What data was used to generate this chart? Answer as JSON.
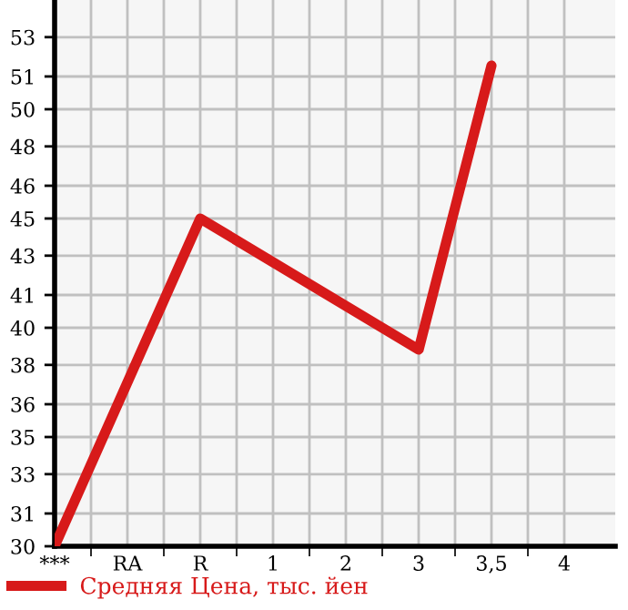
{
  "chart_data": {
    "type": "line",
    "categories": [
      "***",
      "RA",
      "R",
      "1",
      "2",
      "3",
      "3,5",
      "4"
    ],
    "series": [
      {
        "name": "Средняя Цена, тыс. йен",
        "color": "#d71a1a",
        "values": [
          30,
          null,
          45.0,
          null,
          null,
          39.0,
          52.0,
          null
        ]
      }
    ],
    "ylim": [
      30,
      55
    ],
    "yticks": [
      30,
      {
        "value": 31.5,
        "label": "31"
      },
      {
        "value": 33.3,
        "label": "33"
      },
      35,
      {
        "value": 36.5,
        "label": "36"
      },
      {
        "value": 38.3,
        "label": "38"
      },
      40,
      {
        "value": 41.5,
        "label": "41"
      },
      {
        "value": 43.3,
        "label": "43"
      },
      45,
      {
        "value": 46.5,
        "label": "46"
      },
      {
        "value": 48.3,
        "label": "48"
      },
      50,
      {
        "value": 51.5,
        "label": "51"
      },
      {
        "value": 53.3,
        "label": "53"
      }
    ],
    "grid": true,
    "legend": "bottom left",
    "marker": "none",
    "line_style": "solid"
  }
}
